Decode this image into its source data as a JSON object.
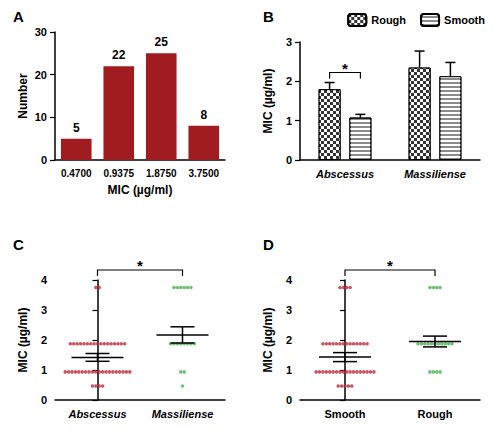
{
  "chart_data": [
    {
      "title": "A",
      "type": "bar",
      "categories": [
        "0.4700",
        "0.9375",
        "1.8750",
        "3.7500"
      ],
      "values": [
        5,
        22,
        25,
        8
      ],
      "color": "#a01c20",
      "xlabel": "MIC (µg/ml)",
      "ylabel": "Number",
      "ylim": [
        0,
        30
      ],
      "yticks": [
        0,
        10,
        20,
        30
      ],
      "data_labels": true,
      "grid": false
    },
    {
      "title": "B",
      "type": "bar",
      "categories": [
        "Abscessus",
        "Massiliense"
      ],
      "series": [
        {
          "name": "Rough",
          "color": "#333333",
          "values": [
            1.8,
            2.35
          ],
          "errors": [
            0.17,
            0.42
          ]
        },
        {
          "name": "Smooth",
          "color": "#8c8c8c",
          "values": [
            1.08,
            2.13
          ],
          "errors": [
            0.08,
            0.35
          ]
        }
      ],
      "ylabel": "MIC (µg/ml)",
      "ylim": [
        0,
        3
      ],
      "yticks": [
        0,
        1,
        2,
        3
      ],
      "legend": "top-right",
      "grid": false,
      "annotation": {
        "text": "*",
        "category": "Abscessus"
      }
    },
    {
      "title": "C",
      "type": "scatter",
      "series": [
        {
          "name": "Abscessus",
          "color": "#c0283a",
          "mean": 1.42,
          "error": 0.13,
          "values": [
            3.75,
            3.75,
            1.875,
            1.875,
            1.875,
            1.875,
            1.875,
            1.875,
            1.875,
            1.875,
            1.875,
            1.875,
            1.875,
            1.875,
            1.875,
            1.875,
            1.875,
            1.875,
            1.875,
            0.9375,
            0.9375,
            0.9375,
            0.9375,
            0.9375,
            0.9375,
            0.9375,
            0.9375,
            0.9375,
            0.9375,
            0.9375,
            0.9375,
            0.9375,
            0.9375,
            0.9375,
            0.9375,
            0.9375,
            0.9375,
            0.9375,
            0.9375,
            0.47,
            0.47,
            0.47,
            0.47
          ]
        },
        {
          "name": "Massiliense",
          "color": "#4caf50",
          "mean": 2.17,
          "error": 0.27,
          "values": [
            3.75,
            3.75,
            3.75,
            3.75,
            3.75,
            3.75,
            1.875,
            1.875,
            1.875,
            1.875,
            1.875,
            1.875,
            1.875,
            1.875,
            0.9375,
            0.9375,
            0.47
          ]
        }
      ],
      "ylabel": "MIC (µg/ml)",
      "ylim": [
        0,
        4
      ],
      "yticks": [
        0,
        1,
        2,
        3,
        4
      ],
      "grid": false,
      "annotation": {
        "text": "*"
      }
    },
    {
      "title": "D",
      "type": "scatter",
      "series": [
        {
          "name": "Smooth",
          "color": "#c0283a",
          "mean": 1.43,
          "error": 0.15,
          "values": [
            3.75,
            3.75,
            3.75,
            3.75,
            1.875,
            1.875,
            1.875,
            1.875,
            1.875,
            1.875,
            1.875,
            1.875,
            1.875,
            1.875,
            1.875,
            1.875,
            1.875,
            1.875,
            0.9375,
            0.9375,
            0.9375,
            0.9375,
            0.9375,
            0.9375,
            0.9375,
            0.9375,
            0.9375,
            0.9375,
            0.9375,
            0.9375,
            0.9375,
            0.9375,
            0.9375,
            0.9375,
            0.9375,
            0.9375,
            0.47,
            0.47,
            0.47,
            0.47,
            0.47
          ]
        },
        {
          "name": "Rough",
          "color": "#4caf50",
          "mean": 1.95,
          "error": 0.18,
          "values": [
            3.75,
            3.75,
            3.75,
            3.75,
            1.875,
            1.875,
            1.875,
            1.875,
            1.875,
            1.875,
            1.875,
            1.875,
            1.875,
            1.875,
            1.875,
            0.9375,
            0.9375,
            0.9375,
            0.9375
          ]
        }
      ],
      "ylabel": "MIC (µg/ml)",
      "ylim": [
        0,
        4
      ],
      "yticks": [
        0,
        1,
        2,
        3,
        4
      ],
      "grid": false,
      "annotation": {
        "text": "*"
      }
    }
  ]
}
